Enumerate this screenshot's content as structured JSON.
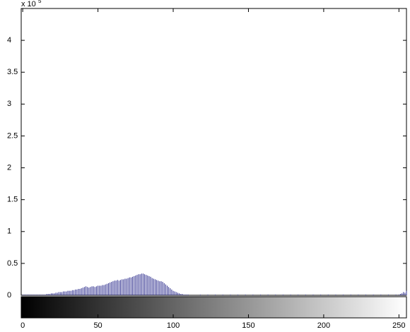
{
  "chart_data": {
    "type": "stem",
    "axis_multiplier": "x 10",
    "axis_multiplier_exponent": "5",
    "x": [
      0,
      1,
      2,
      3,
      4,
      5,
      6,
      7,
      8,
      9,
      10,
      11,
      12,
      13,
      14,
      15,
      16,
      17,
      18,
      19,
      20,
      21,
      22,
      23,
      24,
      25,
      26,
      27,
      28,
      29,
      30,
      31,
      32,
      33,
      34,
      35,
      36,
      37,
      38,
      39,
      40,
      41,
      42,
      43,
      44,
      45,
      46,
      47,
      48,
      49,
      50,
      51,
      52,
      53,
      54,
      55,
      56,
      57,
      58,
      59,
      60,
      61,
      62,
      63,
      64,
      65,
      66,
      67,
      68,
      69,
      70,
      71,
      72,
      73,
      74,
      75,
      76,
      77,
      78,
      79,
      80,
      81,
      82,
      83,
      84,
      85,
      86,
      87,
      88,
      89,
      90,
      91,
      92,
      93,
      94,
      95,
      96,
      97,
      98,
      99,
      100,
      101,
      102,
      103,
      104,
      105,
      106,
      107,
      108,
      109,
      110,
      111,
      112,
      113,
      114,
      115,
      116,
      117,
      118,
      119,
      120,
      121,
      122,
      123,
      124,
      125,
      126,
      127,
      128,
      129,
      130,
      131,
      132,
      133,
      134,
      135,
      136,
      137,
      138,
      139,
      140,
      141,
      142,
      143,
      144,
      145,
      146,
      147,
      148,
      149,
      150,
      151,
      152,
      153,
      154,
      155,
      156,
      157,
      158,
      159,
      160,
      161,
      162,
      163,
      164,
      165,
      166,
      167,
      168,
      169,
      170,
      171,
      172,
      173,
      174,
      175,
      176,
      177,
      178,
      179,
      180,
      181,
      182,
      183,
      184,
      185,
      186,
      187,
      188,
      189,
      190,
      191,
      192,
      193,
      194,
      195,
      196,
      197,
      198,
      199,
      200,
      201,
      202,
      203,
      204,
      205,
      206,
      207,
      208,
      209,
      210,
      211,
      212,
      213,
      214,
      215,
      216,
      217,
      218,
      219,
      220,
      221,
      222,
      223,
      224,
      225,
      226,
      227,
      228,
      229,
      230,
      231,
      232,
      233,
      234,
      235,
      236,
      237,
      238,
      239,
      240,
      241,
      242,
      243,
      244,
      245,
      246,
      247,
      248,
      249,
      250,
      251,
      252,
      253,
      254,
      255
    ],
    "values": [
      0.01,
      0.01,
      0.01,
      0.01,
      0.01,
      0.01,
      0.01,
      0.01,
      0.01,
      0.01,
      0.01,
      0.01,
      0.01,
      0.01,
      0.01,
      0.01,
      0.02,
      0.02,
      0.02,
      0.03,
      0.03,
      0.03,
      0.04,
      0.04,
      0.05,
      0.05,
      0.05,
      0.06,
      0.06,
      0.06,
      0.07,
      0.07,
      0.07,
      0.08,
      0.08,
      0.09,
      0.09,
      0.1,
      0.1,
      0.11,
      0.12,
      0.13,
      0.14,
      0.13,
      0.12,
      0.13,
      0.14,
      0.14,
      0.13,
      0.14,
      0.15,
      0.15,
      0.15,
      0.16,
      0.16,
      0.17,
      0.18,
      0.19,
      0.2,
      0.21,
      0.22,
      0.23,
      0.23,
      0.24,
      0.23,
      0.24,
      0.25,
      0.25,
      0.26,
      0.26,
      0.27,
      0.28,
      0.28,
      0.29,
      0.3,
      0.31,
      0.32,
      0.33,
      0.33,
      0.34,
      0.34,
      0.33,
      0.32,
      0.31,
      0.3,
      0.29,
      0.27,
      0.26,
      0.25,
      0.24,
      0.23,
      0.22,
      0.22,
      0.21,
      0.19,
      0.17,
      0.15,
      0.13,
      0.11,
      0.09,
      0.07,
      0.06,
      0.05,
      0.04,
      0.03,
      0.02,
      0.02,
      0.01,
      0.01,
      0.01,
      0.01,
      0,
      0,
      0,
      0,
      0,
      0,
      0,
      0.01,
      0,
      0,
      0,
      0,
      0.01,
      0,
      0,
      0,
      0,
      0.01,
      0,
      0,
      0,
      0,
      0.01,
      0,
      0,
      0,
      0,
      0.01,
      0,
      0,
      0,
      0,
      0.01,
      0,
      0,
      0,
      0,
      0.01,
      0,
      0,
      0,
      0,
      0.01,
      0,
      0,
      0,
      0,
      0.01,
      0,
      0,
      0,
      0,
      0.01,
      0,
      0,
      0,
      0,
      0.01,
      0,
      0,
      0,
      0,
      0.01,
      0,
      0,
      0,
      0,
      0.01,
      0,
      0,
      0,
      0,
      0.01,
      0,
      0,
      0,
      0,
      0.01,
      0,
      0,
      0,
      0,
      0.01,
      0,
      0,
      0,
      0,
      0.01,
      0,
      0,
      0,
      0,
      0.01,
      0,
      0,
      0,
      0,
      0.01,
      0,
      0,
      0,
      0,
      0.01,
      0,
      0,
      0,
      0,
      0.01,
      0,
      0,
      0,
      0,
      0.01,
      0,
      0,
      0,
      0,
      0.01,
      0,
      0,
      0,
      0,
      0.01,
      0,
      0,
      0,
      0,
      0.01,
      0,
      0,
      0,
      0,
      0.01,
      0,
      0,
      0,
      0,
      0.01,
      0,
      0.01,
      0.02,
      0.03,
      0.05,
      0.04,
      0.07
    ],
    "color": "#2b2b8c",
    "xlim": [
      -1,
      255
    ],
    "ylim": [
      0,
      4.5
    ],
    "xticks": [
      0,
      50,
      100,
      150,
      200,
      250
    ],
    "yticks": [
      0,
      0.5,
      1,
      1.5,
      2,
      2.5,
      3,
      3.5,
      4
    ],
    "colorbar": true
  }
}
